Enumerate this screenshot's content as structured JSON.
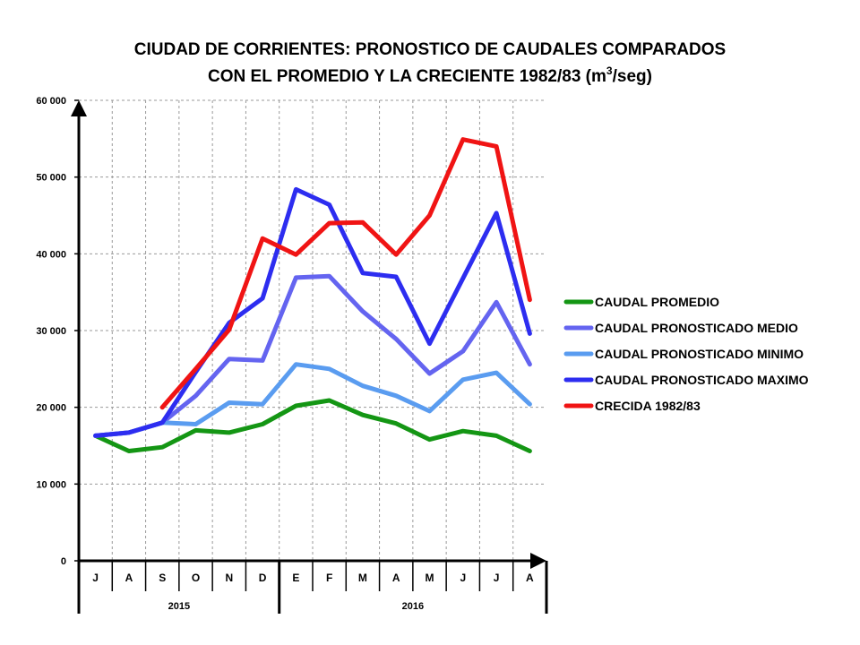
{
  "chart_data": {
    "type": "line",
    "title_line1": "CIUDAD DE CORRIENTES: PRONOSTICO DE CAUDALES COMPARADOS",
    "title_line2_pre": "CON EL PROMEDIO Y LA CRECIENTE 1982/83 (m",
    "title_line2_sup": "3",
    "title_line2_post": "/seg)",
    "categories": [
      "J",
      "A",
      "S",
      "O",
      "N",
      "D",
      "E",
      "F",
      "M",
      "A",
      "M",
      "J",
      "J",
      "A"
    ],
    "year_groups": [
      {
        "label": "2015",
        "start": 0,
        "end": 5
      },
      {
        "label": "2016",
        "start": 6,
        "end": 13
      }
    ],
    "ylim": [
      0,
      60000
    ],
    "yticks": [
      0,
      10000,
      20000,
      30000,
      40000,
      50000,
      60000
    ],
    "ytick_labels": [
      "0",
      "10 000",
      "20 000",
      "30 000",
      "40 000",
      "50 000",
      "60 000"
    ],
    "grid": true,
    "legend_position": "right",
    "series": [
      {
        "name": "CAUDAL PROMEDIO",
        "color": "#149614",
        "values": [
          16300,
          14300,
          14800,
          17000,
          16700,
          17800,
          20200,
          20900,
          19000,
          17900,
          15800,
          16900,
          16300,
          14300
        ]
      },
      {
        "name": "CAUDAL PRONOSTICADO MEDIO",
        "color": "#6464f0",
        "values": [
          16300,
          16700,
          18000,
          21500,
          26300,
          26100,
          36900,
          37100,
          32500,
          28900,
          24400,
          27300,
          33700,
          25600
        ]
      },
      {
        "name": "CAUDAL PRONOSTICADO MINIMO",
        "color": "#5a9cf0",
        "values": [
          16300,
          16700,
          18000,
          17800,
          20600,
          20400,
          25600,
          25000,
          22800,
          21500,
          19500,
          23600,
          24500,
          20400
        ]
      },
      {
        "name": "CAUDAL PRONOSTICADO MAXIMO",
        "color": "#2d2df0",
        "values": [
          16300,
          16700,
          18000,
          24600,
          31000,
          34200,
          48400,
          46400,
          37500,
          37000,
          28300,
          36800,
          45300,
          29600
        ]
      },
      {
        "name": "CRECIDA 1982/83",
        "color": "#f01414",
        "values": [
          null,
          null,
          20000,
          25000,
          30100,
          42000,
          39900,
          44000,
          44100,
          39900,
          45000,
          54900,
          54000,
          34000
        ]
      }
    ]
  }
}
